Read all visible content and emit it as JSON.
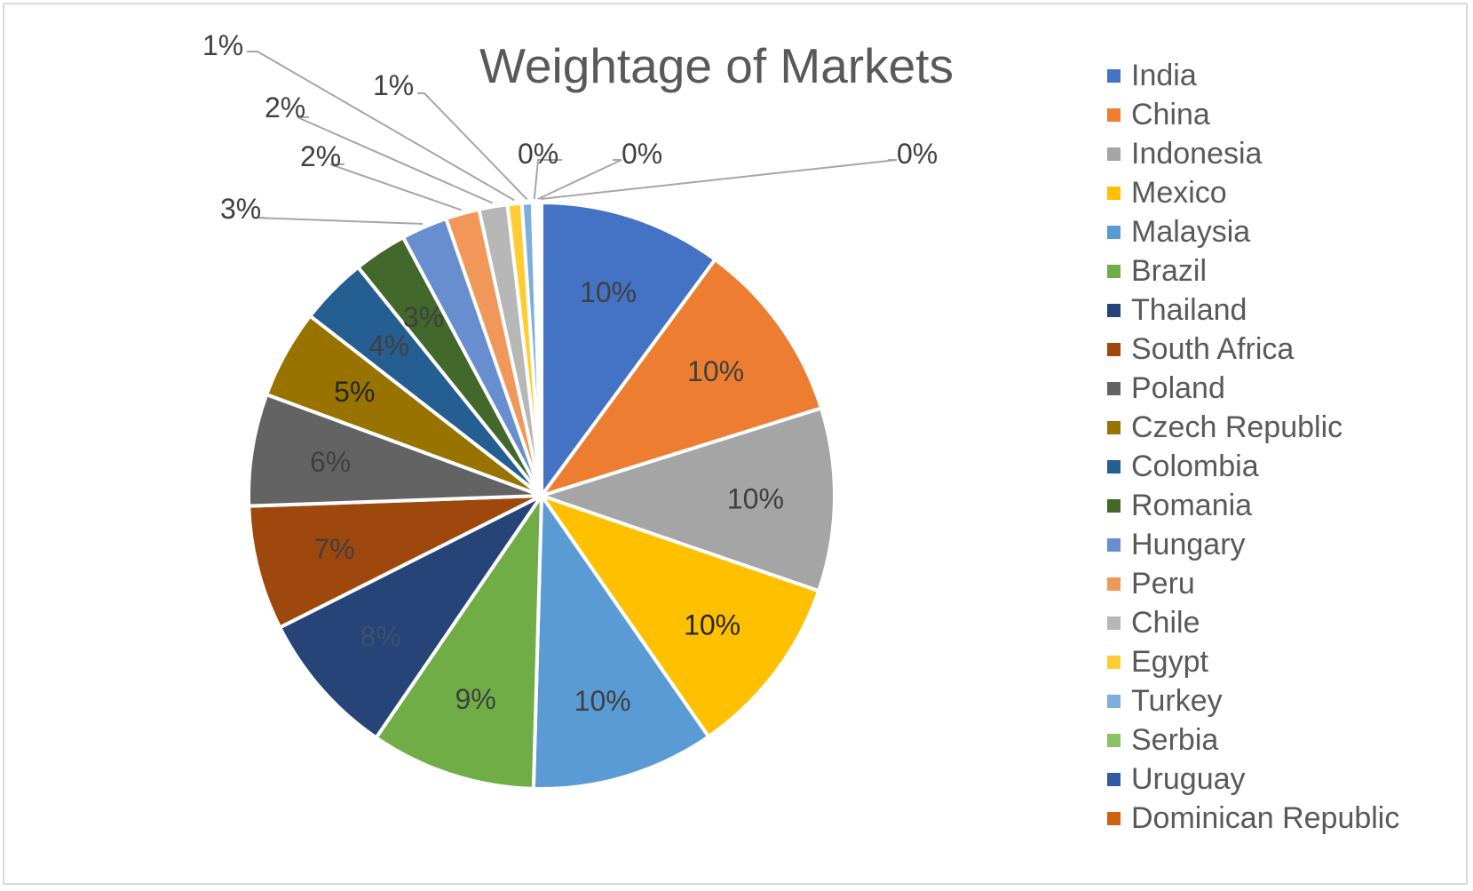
{
  "chart_data": {
    "type": "pie",
    "title": "Weightage of Markets",
    "legend_position": "right",
    "slices": [
      {
        "name": "India",
        "value": 10.3,
        "label": "10%",
        "color": "#4472C4"
      },
      {
        "name": "China",
        "value": 10.3,
        "label": "10%",
        "color": "#ED7D31"
      },
      {
        "name": "Indonesia",
        "value": 10.3,
        "label": "10%",
        "color": "#A5A5A5"
      },
      {
        "name": "Mexico",
        "value": 10.3,
        "label": "10%",
        "color": "#FFC000"
      },
      {
        "name": "Malaysia",
        "value": 10.3,
        "label": "10%",
        "color": "#5B9BD5"
      },
      {
        "name": "Brazil",
        "value": 9.3,
        "label": "9%",
        "color": "#70AD47"
      },
      {
        "name": "Thailand",
        "value": 8.2,
        "label": "8%",
        "color": "#264478"
      },
      {
        "name": "South Africa",
        "value": 7.0,
        "label": "7%",
        "color": "#9E480E"
      },
      {
        "name": "Poland",
        "value": 6.3,
        "label": "6%",
        "color": "#636363"
      },
      {
        "name": "Czech Republic",
        "value": 5.0,
        "label": "5%",
        "color": "#997300"
      },
      {
        "name": "Colombia",
        "value": 3.8,
        "label": "4%",
        "color": "#255E91"
      },
      {
        "name": "Romania",
        "value": 3.0,
        "label": "3%",
        "color": "#43682B"
      },
      {
        "name": "Hungary",
        "value": 2.6,
        "label": "3%",
        "color": "#698ED0"
      },
      {
        "name": "Peru",
        "value": 1.9,
        "label": "2%",
        "color": "#F1975A"
      },
      {
        "name": "Chile",
        "value": 1.6,
        "label": "2%",
        "color": "#B7B7B7"
      },
      {
        "name": "Egypt",
        "value": 0.8,
        "label": "1%",
        "color": "#FFCD33"
      },
      {
        "name": "Turkey",
        "value": 0.6,
        "label": "1%",
        "color": "#7CAFDD"
      },
      {
        "name": "Serbia",
        "value": 0.2,
        "label": "0%",
        "color": "#8CC168"
      },
      {
        "name": "Uruguay",
        "value": 0.2,
        "label": "0%",
        "color": "#335AA1"
      },
      {
        "name": "Dominican Republic",
        "value": 0.1,
        "label": "0%",
        "color": "#D26012"
      }
    ]
  }
}
